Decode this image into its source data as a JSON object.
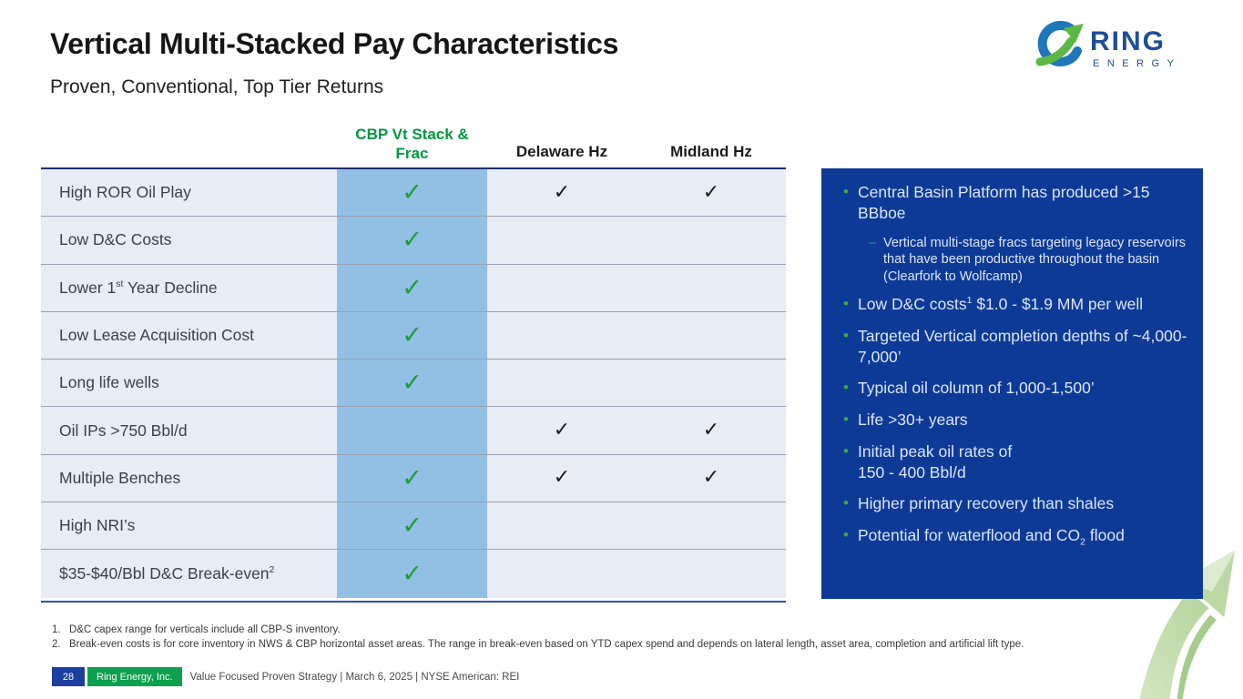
{
  "colors": {
    "panel_blue": "#0d3a96",
    "highlight_column": "#92c0e5",
    "green_check": "#1d9b35",
    "brand_green": "#00993f",
    "brand_navy": "#1f4e96",
    "arrow_green": "#c6dfb2"
  },
  "header": {
    "title": "Vertical Multi-Stacked Pay Characteristics",
    "subtitle": "Proven, Conventional, Top Tier Returns"
  },
  "logo": {
    "brand": "RING",
    "sub_brand": "ENERGY"
  },
  "table": {
    "check_glyph": "✓",
    "columns": [
      "CBP Vt Stack & Frac",
      "Delaware Hz",
      "Midland Hz"
    ],
    "rows": [
      {
        "label": [
          {
            "t": "High ROR Oil Play"
          }
        ],
        "checks": [
          "green",
          "black",
          "black"
        ]
      },
      {
        "label": [
          {
            "t": "Low D&C Costs"
          }
        ],
        "checks": [
          "green",
          "",
          ""
        ]
      },
      {
        "label": [
          {
            "t": "Lower 1"
          },
          {
            "sup": "st"
          },
          {
            "t": " Year Decline"
          }
        ],
        "checks": [
          "green",
          "",
          ""
        ]
      },
      {
        "label": [
          {
            "t": "Low Lease Acquisition Cost"
          }
        ],
        "checks": [
          "green",
          "",
          ""
        ]
      },
      {
        "label": [
          {
            "t": "Long life wells"
          }
        ],
        "checks": [
          "green",
          "",
          ""
        ]
      },
      {
        "label": [
          {
            "t": "Oil IPs >750 Bbl/d"
          }
        ],
        "checks": [
          "",
          "black",
          "black"
        ]
      },
      {
        "label": [
          {
            "t": "Multiple Benches"
          }
        ],
        "checks": [
          "green",
          "black",
          "black"
        ]
      },
      {
        "label": [
          {
            "t": "High NRI’s"
          }
        ],
        "checks": [
          "green",
          "",
          ""
        ]
      },
      {
        "label": [
          {
            "t": "$35-$40/Bbl D&C Break-even"
          },
          {
            "sup": "2"
          }
        ],
        "checks": [
          "green",
          "",
          ""
        ]
      }
    ]
  },
  "panel": {
    "bullet_glyph": "•",
    "sub_bullet_glyph": "–",
    "bullets": [
      {
        "segments": [
          {
            "t": "Central Basin Platform has produced >15 BBboe"
          }
        ],
        "sub": [
          {
            "segments": [
              {
                "t": "Vertical multi-stage fracs targeting legacy reservoirs that have been productive throughout the basin (Clearfork to Wolfcamp)"
              }
            ]
          }
        ]
      },
      {
        "segments": [
          {
            "t": "Low D&C costs"
          },
          {
            "sup": "1"
          },
          {
            "t": " $1.0 - $1.9 MM per well"
          }
        ]
      },
      {
        "segments": [
          {
            "t": "Targeted Vertical completion depths of ~4,000-7,000’"
          }
        ]
      },
      {
        "segments": [
          {
            "t": "Typical oil column of 1,000-1,500’"
          }
        ]
      },
      {
        "segments": [
          {
            "t": "Life >30+ years"
          }
        ]
      },
      {
        "segments": [
          {
            "t": "Initial peak oil rates of"
          },
          {
            "br": true
          },
          {
            "t": "150 - 400 Bbl/d"
          }
        ]
      },
      {
        "segments": [
          {
            "t": "Higher primary recovery than shales"
          }
        ]
      },
      {
        "segments": [
          {
            "t": "Potential for waterflood and CO"
          },
          {
            "sub": "2"
          },
          {
            "t": " flood"
          }
        ]
      }
    ]
  },
  "footnotes": [
    {
      "num": "1.",
      "text": "D&C capex range for verticals include all CBP-S inventory."
    },
    {
      "num": "2.",
      "text": "Break-even costs is for core inventory in NWS & CBP horizontal asset areas. The range in break-even based on YTD capex spend and depends on lateral length, asset area, completion and artificial lift type."
    }
  ],
  "footer": {
    "page_number": "28",
    "company": "Ring Energy, Inc.",
    "tagline": "Value Focused Proven Strategy  | March 6, 2025 |  NYSE American: REI"
  }
}
